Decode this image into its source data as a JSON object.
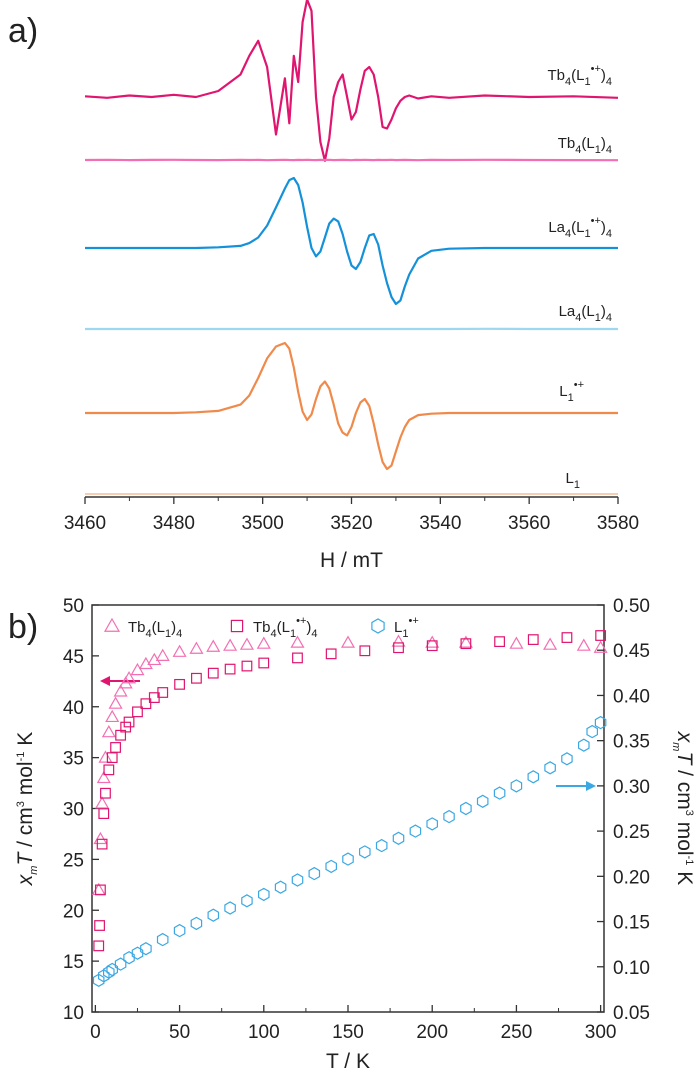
{
  "panel_a": {
    "label": "a)"
  },
  "panel_b": {
    "label": "b)"
  },
  "chart_data": [
    {
      "type": "line",
      "title": "",
      "xlabel": "H / mT",
      "ylabel": "",
      "xlim": [
        3460,
        3580
      ],
      "xticks": [
        3460,
        3480,
        3500,
        3520,
        3540,
        3560,
        3580
      ],
      "yaxis_shown": false,
      "grid": false,
      "x_grid": [
        3460,
        3465,
        3470,
        3475,
        3480,
        3485,
        3490,
        3495,
        3497,
        3499,
        3501,
        3503,
        3505,
        3506,
        3507,
        3508,
        3509,
        3510,
        3511,
        3512,
        3513,
        3514,
        3515,
        3516,
        3517,
        3518,
        3519,
        3520,
        3521,
        3522,
        3523,
        3524,
        3525,
        3526,
        3527,
        3528,
        3529,
        3530,
        3531,
        3532,
        3533,
        3535,
        3538,
        3542,
        3550,
        3560,
        3570,
        3580
      ],
      "series": [
        {
          "name": "Tb4(L1•+)4",
          "label_parts": [
            {
              "t": "Tb",
              "s": ""
            },
            {
              "t": "4",
              "s": "sub"
            },
            {
              "t": "(L",
              "s": ""
            },
            {
              "t": "1",
              "s": "sub"
            },
            {
              "t": "•+",
              "s": "sup"
            },
            {
              "t": ")",
              "s": ""
            },
            {
              "t": "4",
              "s": "sub"
            }
          ],
          "color": "#e0156f",
          "y": [
            0.01,
            -0.01,
            0.02,
            0.0,
            0.03,
            0.0,
            0.08,
            0.3,
            0.55,
            0.75,
            0.4,
            -0.5,
            0.25,
            -0.35,
            0.55,
            0.2,
            1.0,
            1.3,
            1.15,
            0.0,
            -0.6,
            -0.85,
            -0.55,
            0.0,
            0.2,
            0.3,
            0.0,
            -0.3,
            -0.2,
            0.1,
            0.35,
            0.4,
            0.3,
            0.0,
            -0.4,
            -0.42,
            -0.3,
            -0.15,
            -0.05,
            0.0,
            0.02,
            -0.02,
            0.01,
            -0.01,
            0.02,
            0.0,
            0.01,
            -0.01
          ]
        },
        {
          "name": "Tb4(L1)4",
          "label_parts": [
            {
              "t": "Tb",
              "s": ""
            },
            {
              "t": "4",
              "s": "sub"
            },
            {
              "t": "(L",
              "s": ""
            },
            {
              "t": "1",
              "s": "sub"
            },
            {
              "t": ")",
              "s": ""
            },
            {
              "t": "4",
              "s": "sub"
            }
          ],
          "color": "#f36fb3",
          "y": [
            0.0,
            0.02,
            -0.01,
            0.01,
            0.02,
            0.0,
            -0.01,
            0.02,
            0.0,
            0.01,
            -0.02,
            0.0,
            0.02,
            0.0,
            -0.01,
            0.01,
            0.0,
            0.02,
            0.0,
            -0.01,
            0.01,
            0.0,
            0.02,
            -0.01,
            0.0,
            0.01,
            0.0,
            -0.02,
            0.01,
            0.0,
            0.02,
            0.0,
            -0.01,
            0.01,
            0.0,
            0.0,
            0.02,
            -0.01,
            0.0,
            0.01,
            0.0,
            -0.02,
            0.01,
            0.0,
            0.02,
            0.0,
            -0.01,
            -0.03
          ]
        },
        {
          "name": "La4(L1•+)4",
          "label_parts": [
            {
              "t": "La",
              "s": ""
            },
            {
              "t": "4",
              "s": "sub"
            },
            {
              "t": "(L",
              "s": ""
            },
            {
              "t": "1",
              "s": "sub"
            },
            {
              "t": "•+",
              "s": "sup"
            },
            {
              "t": ")",
              "s": ""
            },
            {
              "t": "4",
              "s": "sub"
            }
          ],
          "color": "#1591d9",
          "y": [
            0.0,
            0.0,
            0.0,
            0.0,
            0.0,
            0.0,
            0.01,
            0.03,
            0.07,
            0.15,
            0.32,
            0.58,
            0.85,
            0.97,
            1.0,
            0.9,
            0.65,
            0.3,
            0.0,
            -0.12,
            -0.05,
            0.15,
            0.35,
            0.42,
            0.38,
            0.2,
            -0.05,
            -0.25,
            -0.3,
            -0.2,
            0.0,
            0.18,
            0.2,
            0.05,
            -0.25,
            -0.5,
            -0.7,
            -0.8,
            -0.75,
            -0.55,
            -0.38,
            -0.15,
            -0.04,
            -0.01,
            0.0,
            0.0,
            0.0,
            0.0
          ]
        },
        {
          "name": "La4(L1)4",
          "label_parts": [
            {
              "t": "La",
              "s": ""
            },
            {
              "t": "4",
              "s": "sub"
            },
            {
              "t": "(L",
              "s": ""
            },
            {
              "t": "1",
              "s": "sub"
            },
            {
              "t": ")",
              "s": ""
            },
            {
              "t": "4",
              "s": "sub"
            }
          ],
          "color": "#9fd6f0",
          "y": [
            0.0,
            0.0,
            0.0,
            0.0,
            0.0,
            0.0,
            0.0,
            0.0,
            0.0,
            0.0,
            0.0,
            0.0,
            0.0,
            0.0,
            0.0,
            0.0,
            0.0,
            0.0,
            0.0,
            0.0,
            0.0,
            0.0,
            0.0,
            0.0,
            0.0,
            0.0,
            0.0,
            0.0,
            0.0,
            0.0,
            0.0,
            0.0,
            0.0,
            0.0,
            0.0,
            0.0,
            0.0,
            0.0,
            0.0,
            0.0,
            0.0,
            0.0,
            0.0,
            0.0,
            0.02,
            0.0,
            0.0,
            0.0
          ]
        },
        {
          "name": "L1•+",
          "label_parts": [
            {
              "t": "L",
              "s": ""
            },
            {
              "t": "1",
              "s": "sub"
            },
            {
              "t": "•+",
              "s": "sup"
            }
          ],
          "color": "#f08a4b",
          "y": [
            0.0,
            0.0,
            0.0,
            0.0,
            0.0,
            0.01,
            0.03,
            0.12,
            0.25,
            0.5,
            0.78,
            0.95,
            1.0,
            0.92,
            0.65,
            0.3,
            0.02,
            -0.1,
            -0.02,
            0.2,
            0.38,
            0.45,
            0.35,
            0.12,
            -0.15,
            -0.28,
            -0.32,
            -0.2,
            0.0,
            0.15,
            0.2,
            0.1,
            -0.15,
            -0.45,
            -0.7,
            -0.8,
            -0.75,
            -0.55,
            -0.35,
            -0.2,
            -0.1,
            -0.03,
            -0.01,
            0.0,
            0.0,
            0.0,
            0.0,
            0.0
          ]
        },
        {
          "name": "L1",
          "label_parts": [
            {
              "t": "L",
              "s": ""
            },
            {
              "t": "1",
              "s": "sub"
            }
          ],
          "color": "#f7cdb3",
          "y": [
            0.0,
            0.0,
            0.0,
            0.0,
            0.0,
            0.0,
            0.0,
            0.0,
            0.0,
            0.0,
            0.0,
            0.0,
            0.0,
            0.0,
            0.0,
            0.0,
            0.0,
            0.0,
            0.0,
            0.0,
            0.0,
            0.0,
            0.0,
            0.0,
            0.0,
            0.0,
            0.0,
            0.0,
            0.0,
            0.0,
            0.0,
            0.0,
            0.0,
            0.0,
            0.0,
            0.0,
            0.0,
            0.0,
            0.0,
            0.0,
            0.0,
            0.0,
            0.0,
            0.0,
            0.0,
            0.0,
            0.0,
            0.0
          ]
        }
      ]
    },
    {
      "type": "scatter",
      "title": "",
      "xlabel": "T / K",
      "ylabel_left": "χmT / cm3 mol-1 K",
      "ylabel_left_parts": [
        {
          "t": "x",
          "s": "it"
        },
        {
          "t": "m",
          "s": "subit"
        },
        {
          "t": "T",
          "s": "it"
        },
        {
          "t": " / cm",
          "s": ""
        },
        {
          "t": "3",
          "s": "sup"
        },
        {
          "t": " mol",
          "s": ""
        },
        {
          "t": "-1",
          "s": "sup"
        },
        {
          "t": " K",
          "s": ""
        }
      ],
      "ylabel_right": "χmT / cm3 mol-1 K",
      "xlim": [
        -2,
        302
      ],
      "xticks": [
        0,
        50,
        100,
        150,
        200,
        250,
        300
      ],
      "ylim_left": [
        10,
        50
      ],
      "yticks_left": [
        10,
        15,
        20,
        25,
        30,
        35,
        40,
        45,
        50
      ],
      "ylim_right": [
        0.05,
        0.5
      ],
      "yticks_right": [
        "0.05",
        "0.10",
        "0.15",
        "0.20",
        "0.25",
        "0.30",
        "0.35",
        "0.40",
        "0.45",
        "0.50"
      ],
      "grid": false,
      "legend_position": "top",
      "series": [
        {
          "name": "Tb4(L1)4",
          "legend_parts": [
            {
              "t": "Tb",
              "s": ""
            },
            {
              "t": "4",
              "s": "sub"
            },
            {
              "t": "(L",
              "s": ""
            },
            {
              "t": "1",
              "s": "sub"
            },
            {
              "t": ")",
              "s": ""
            },
            {
              "t": "4",
              "s": "sub"
            }
          ],
          "marker": "triangle",
          "color": "#f36fb3",
          "axis": "left",
          "x": [
            2,
            3,
            4,
            5,
            6,
            8,
            10,
            12,
            15,
            18,
            20,
            25,
            30,
            35,
            40,
            50,
            60,
            70,
            80,
            90,
            100,
            120,
            150,
            180,
            200,
            220,
            250,
            270,
            290,
            300
          ],
          "y": [
            22.0,
            27.0,
            30.5,
            33.0,
            35.0,
            37.5,
            39.0,
            40.3,
            41.5,
            42.3,
            42.8,
            43.6,
            44.2,
            44.6,
            45.0,
            45.4,
            45.7,
            45.9,
            46.0,
            46.1,
            46.2,
            46.3,
            46.3,
            46.4,
            46.3,
            46.3,
            46.2,
            46.1,
            46.0,
            45.8
          ]
        },
        {
          "name": "Tb4(L1•+)4",
          "legend_parts": [
            {
              "t": "Tb",
              "s": ""
            },
            {
              "t": "4",
              "s": "sub"
            },
            {
              "t": "(L",
              "s": ""
            },
            {
              "t": "1",
              "s": "sub"
            },
            {
              "t": "•+",
              "s": "sup"
            },
            {
              "t": ")",
              "s": ""
            },
            {
              "t": "4",
              "s": "sub"
            }
          ],
          "marker": "square",
          "color": "#e0156f",
          "axis": "left",
          "x": [
            2,
            2.5,
            3,
            4,
            5,
            6,
            8,
            10,
            12,
            15,
            18,
            20,
            25,
            30,
            35,
            40,
            50,
            60,
            70,
            80,
            90,
            100,
            120,
            140,
            160,
            180,
            200,
            220,
            240,
            260,
            280,
            300
          ],
          "y": [
            16.5,
            18.5,
            22.0,
            26.5,
            29.5,
            31.5,
            33.8,
            35.0,
            36.0,
            37.2,
            38.0,
            38.5,
            39.5,
            40.3,
            40.9,
            41.4,
            42.2,
            42.8,
            43.3,
            43.7,
            44.0,
            44.3,
            44.8,
            45.2,
            45.5,
            45.8,
            46.0,
            46.2,
            46.4,
            46.6,
            46.8,
            47.0
          ]
        },
        {
          "name": "L1•+",
          "legend_parts": [
            {
              "t": "L",
              "s": ""
            },
            {
              "t": "1",
              "s": "sub"
            },
            {
              "t": "•+",
              "s": "sup"
            }
          ],
          "marker": "hexagon",
          "color": "#3ba8e3",
          "axis": "right",
          "x": [
            2,
            5,
            8,
            10,
            15,
            20,
            25,
            30,
            40,
            50,
            60,
            70,
            80,
            90,
            100,
            110,
            120,
            130,
            140,
            150,
            160,
            170,
            180,
            190,
            200,
            210,
            220,
            230,
            240,
            250,
            260,
            270,
            280,
            290,
            295,
            300
          ],
          "y": [
            0.085,
            0.09,
            0.094,
            0.097,
            0.103,
            0.11,
            0.115,
            0.12,
            0.13,
            0.14,
            0.148,
            0.157,
            0.165,
            0.173,
            0.18,
            0.188,
            0.196,
            0.203,
            0.211,
            0.219,
            0.227,
            0.234,
            0.242,
            0.25,
            0.258,
            0.266,
            0.275,
            0.283,
            0.292,
            0.3,
            0.31,
            0.32,
            0.33,
            0.345,
            0.36,
            0.37
          ]
        }
      ]
    }
  ]
}
